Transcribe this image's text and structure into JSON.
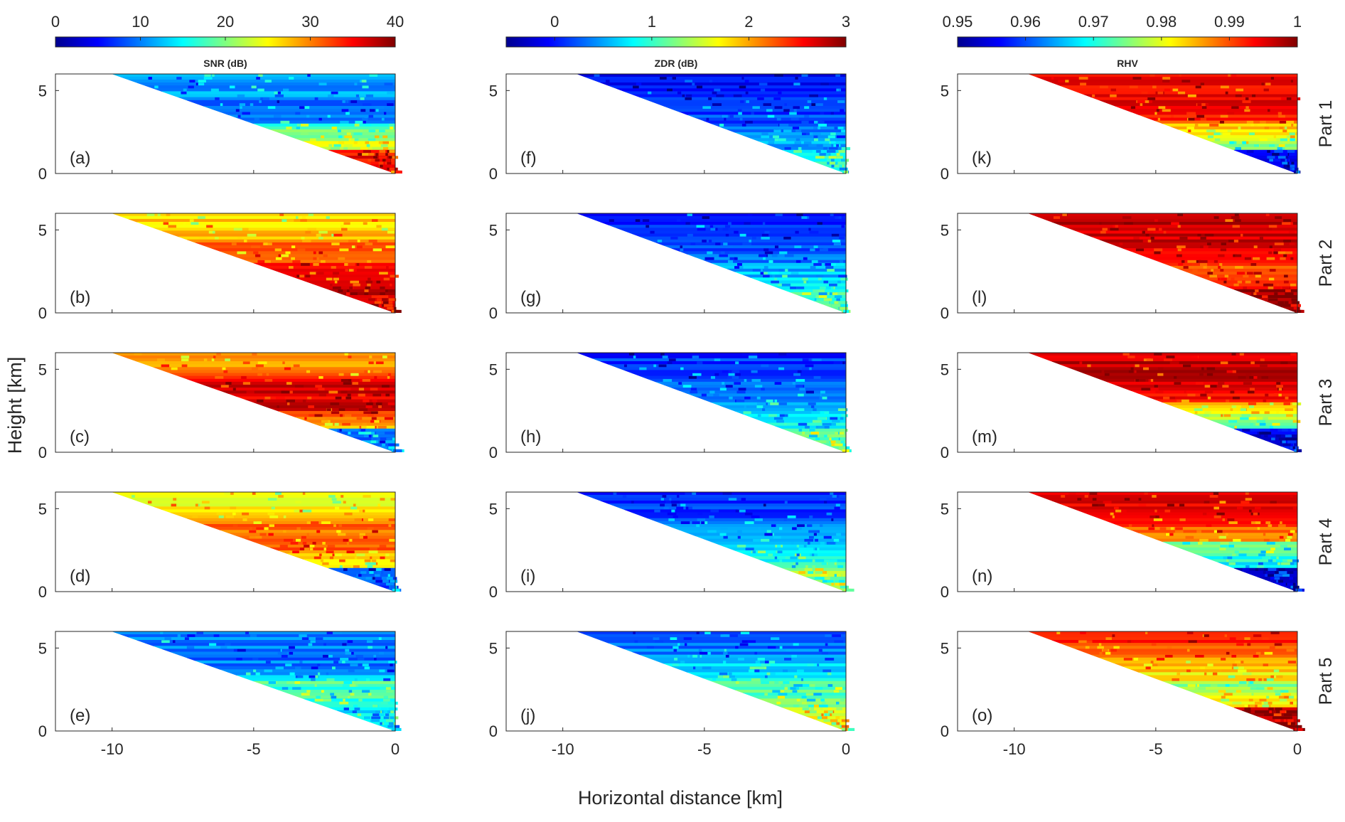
{
  "figure": {
    "xlabel": "Horizontal distance [km]",
    "ylabel": "Height [km]",
    "x_ticks": [
      -10,
      -5,
      0
    ],
    "y_ticks": [
      0,
      5
    ],
    "xlim": [
      -12,
      0
    ],
    "ylim": [
      0,
      6
    ],
    "row_labels": [
      "Part 1",
      "Part 2",
      "Part 3",
      "Part 4",
      "Part 5"
    ]
  },
  "chart_data": [
    {
      "type": "heatmap",
      "variable": "SNR (dB)",
      "colorbar": {
        "label": "SNR (dB)",
        "ticks": [
          0,
          10,
          20,
          30,
          40
        ],
        "range": [
          0,
          40
        ],
        "colormap": "jet"
      },
      "xlabel": "Horizontal distance [km]",
      "ylabel": "Height [km]",
      "xlim": [
        -12,
        0
      ],
      "ylim": [
        0,
        6
      ],
      "panels": [
        {
          "label": "(a)",
          "part": "Part 1",
          "cone_x_start": -10.0,
          "description_levels": [
            12,
            8,
            18,
            35
          ]
        },
        {
          "label": "(b)",
          "part": "Part 2",
          "cone_x_start": -10.0,
          "description_levels": [
            26,
            30,
            34,
            38
          ]
        },
        {
          "label": "(c)",
          "part": "Part 3",
          "cone_x_start": -10.0,
          "description_levels": [
            28,
            36,
            38,
            10
          ]
        },
        {
          "label": "(d)",
          "part": "Part 4",
          "cone_x_start": -10.0,
          "description_levels": [
            24,
            30,
            33,
            8
          ]
        },
        {
          "label": "(e)",
          "part": "Part 5",
          "cone_x_start": -10.0,
          "description_levels": [
            10,
            9,
            18,
            14
          ]
        }
      ]
    },
    {
      "type": "heatmap",
      "variable": "ZDR (dB)",
      "colorbar": {
        "label": "ZDR (dB)",
        "ticks": [
          0,
          1,
          2,
          3
        ],
        "range": [
          -0.5,
          3
        ],
        "colormap": "jet"
      },
      "xlabel": "Horizontal distance [km]",
      "ylabel": "Height [km]",
      "xlim": [
        -12,
        0
      ],
      "ylim": [
        0,
        6
      ],
      "panels": [
        {
          "label": "(f)",
          "part": "Part 1",
          "cone_x_start": -9.5,
          "description_levels": [
            0.0,
            0.1,
            0.4,
            0.9
          ]
        },
        {
          "label": "(g)",
          "part": "Part 2",
          "cone_x_start": -9.5,
          "description_levels": [
            0.1,
            0.2,
            0.5,
            1.0
          ]
        },
        {
          "label": "(h)",
          "part": "Part 3",
          "cone_x_start": -9.5,
          "description_levels": [
            0.1,
            0.2,
            0.6,
            1.2
          ]
        },
        {
          "label": "(i)",
          "part": "Part 4",
          "cone_x_start": -9.5,
          "description_levels": [
            0.1,
            0.3,
            0.7,
            1.3
          ]
        },
        {
          "label": "(j)",
          "part": "Part 5",
          "cone_x_start": -9.5,
          "description_levels": [
            0.3,
            0.6,
            1.0,
            1.6
          ]
        }
      ]
    },
    {
      "type": "heatmap",
      "variable": "RHV",
      "colorbar": {
        "label": "RHV",
        "ticks": [
          0.95,
          0.96,
          0.97,
          0.98,
          0.99,
          1
        ],
        "range": [
          0.95,
          1.0
        ],
        "colormap": "jet"
      },
      "xlabel": "Horizontal distance [km]",
      "ylabel": "Height [km]",
      "xlim": [
        -12,
        0
      ],
      "ylim": [
        0,
        6
      ],
      "panels": [
        {
          "label": "(k)",
          "part": "Part 1",
          "cone_x_start": -9.5,
          "description_levels": [
            0.993,
            0.995,
            0.985,
            0.955
          ]
        },
        {
          "label": "(l)",
          "part": "Part 2",
          "cone_x_start": -9.5,
          "description_levels": [
            0.996,
            0.997,
            0.99,
            0.998
          ]
        },
        {
          "label": "(m)",
          "part": "Part 3",
          "cone_x_start": -9.5,
          "description_levels": [
            0.996,
            0.997,
            0.985,
            0.955
          ]
        },
        {
          "label": "(n)",
          "part": "Part 4",
          "cone_x_start": -9.5,
          "description_levels": [
            0.994,
            0.993,
            0.975,
            0.955
          ]
        },
        {
          "label": "(o)",
          "part": "Part 5",
          "cone_x_start": -9.5,
          "description_levels": [
            0.992,
            0.985,
            0.975,
            0.998
          ]
        }
      ]
    }
  ]
}
